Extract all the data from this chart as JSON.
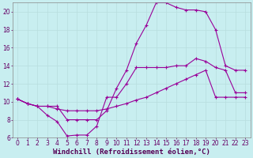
{
  "xlabel": "Windchill (Refroidissement éolien,°C)",
  "bg_color": "#c8eef0",
  "line_color": "#990099",
  "grid_color": "#b8dede",
  "xlim": [
    -0.5,
    23.5
  ],
  "ylim": [
    6,
    21
  ],
  "xticks": [
    0,
    1,
    2,
    3,
    4,
    5,
    6,
    7,
    8,
    9,
    10,
    11,
    12,
    13,
    14,
    15,
    16,
    17,
    18,
    19,
    20,
    21,
    22,
    23
  ],
  "yticks": [
    6,
    8,
    10,
    12,
    14,
    16,
    18,
    20
  ],
  "line1_x": [
    0,
    1,
    2,
    3,
    4,
    5,
    6,
    7,
    8,
    9,
    10,
    11,
    12,
    13,
    14,
    15,
    16,
    17,
    18,
    19,
    20,
    21,
    22,
    23
  ],
  "line1_y": [
    10.3,
    9.8,
    9.5,
    8.5,
    7.8,
    6.2,
    6.3,
    6.3,
    7.3,
    10.5,
    10.5,
    12.0,
    13.8,
    13.8,
    13.8,
    13.8,
    14.0,
    14.0,
    14.8,
    14.5,
    13.8,
    13.5,
    11.0,
    11.0
  ],
  "line2_x": [
    0,
    1,
    2,
    3,
    4,
    5,
    6,
    7,
    8,
    9,
    10,
    11,
    12,
    13,
    14,
    15,
    16,
    17,
    18,
    19,
    20,
    21,
    22,
    23
  ],
  "line2_y": [
    10.3,
    9.8,
    9.5,
    9.5,
    9.5,
    8.0,
    8.0,
    8.0,
    8.0,
    9.0,
    11.5,
    13.5,
    16.5,
    18.5,
    21.0,
    21.0,
    20.5,
    20.2,
    20.2,
    20.0,
    18.0,
    14.0,
    13.5,
    13.5
  ],
  "line3_x": [
    0,
    1,
    2,
    3,
    4,
    5,
    6,
    7,
    8,
    9,
    10,
    11,
    12,
    13,
    14,
    15,
    16,
    17,
    18,
    19,
    20,
    21,
    22,
    23
  ],
  "line3_y": [
    10.3,
    9.8,
    9.5,
    9.5,
    9.2,
    9.0,
    9.0,
    9.0,
    9.0,
    9.2,
    9.5,
    9.8,
    10.2,
    10.5,
    11.0,
    11.5,
    12.0,
    12.5,
    13.0,
    13.5,
    10.5,
    10.5,
    10.5,
    10.5
  ],
  "xlabel_fontsize": 6.5,
  "tick_fontsize": 5.5,
  "figsize": [
    3.2,
    2.0
  ],
  "dpi": 100
}
